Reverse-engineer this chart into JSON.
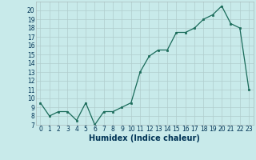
{
  "x": [
    0,
    1,
    2,
    3,
    4,
    5,
    6,
    7,
    8,
    9,
    10,
    11,
    12,
    13,
    14,
    15,
    16,
    17,
    18,
    19,
    20,
    21,
    22,
    23
  ],
  "y": [
    9.5,
    8.0,
    8.5,
    8.5,
    7.5,
    9.5,
    7.0,
    8.5,
    8.5,
    9.0,
    9.5,
    13.0,
    14.8,
    15.5,
    15.5,
    17.5,
    17.5,
    18.0,
    19.0,
    19.5,
    20.5,
    18.5,
    18.0,
    11.0
  ],
  "xlabel": "Humidex (Indice chaleur)",
  "bg_color": "#c8eaea",
  "grid_color": "#b0cccc",
  "line_color": "#1a6b5a",
  "marker_color": "#1a6b5a",
  "ylim": [
    7,
    21
  ],
  "xlim": [
    -0.5,
    23.5
  ],
  "yticks": [
    7,
    8,
    9,
    10,
    11,
    12,
    13,
    14,
    15,
    16,
    17,
    18,
    19,
    20
  ],
  "xtick_labels": [
    "0",
    "1",
    "2",
    "3",
    "4",
    "5",
    "6",
    "7",
    "8",
    "9",
    "10",
    "11",
    "12",
    "13",
    "14",
    "15",
    "16",
    "17",
    "18",
    "19",
    "20",
    "21",
    "22",
    "23"
  ],
  "tick_fontsize": 5.5,
  "xlabel_fontsize": 7
}
